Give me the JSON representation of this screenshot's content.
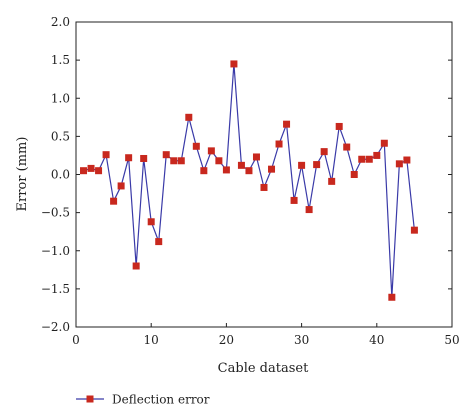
{
  "chart_data": {
    "type": "line",
    "xlabel": "Cable dataset",
    "ylabel": "Error (mm)",
    "xlim": [
      0,
      50
    ],
    "ylim": [
      -2.0,
      2.0
    ],
    "x_ticks": [
      0,
      10,
      20,
      30,
      40,
      50
    ],
    "x_tick_labels": [
      "0",
      "10",
      "20",
      "30",
      "40",
      "50"
    ],
    "y_ticks": [
      2.0,
      1.5,
      1.0,
      0.5,
      0.0,
      -0.5,
      -1.0,
      -1.5,
      -2.0
    ],
    "y_tick_labels": [
      "2.0",
      "1.5",
      "1.0",
      "0.5",
      "0.0",
      "−0.5",
      "−1.0",
      "−1.5",
      "−2.0"
    ],
    "grid": false,
    "legend_position": "bottom-left",
    "series": [
      {
        "name": "Deflection error",
        "line_color": "#3a3aa8",
        "marker_color": "#c8281e",
        "marker": "square",
        "x": [
          1,
          2,
          3,
          4,
          5,
          6,
          7,
          8,
          9,
          10,
          11,
          12,
          13,
          14,
          15,
          16,
          17,
          18,
          19,
          20,
          21,
          22,
          23,
          24,
          25,
          26,
          27,
          28,
          29,
          30,
          31,
          32,
          33,
          34,
          35,
          36,
          37,
          38,
          39,
          40,
          41,
          42,
          43,
          44,
          45
        ],
        "values": [
          0.05,
          0.08,
          0.05,
          0.26,
          -0.35,
          -0.15,
          0.22,
          -1.2,
          0.21,
          -0.62,
          -0.88,
          0.26,
          0.18,
          0.18,
          0.75,
          0.37,
          0.05,
          0.31,
          0.18,
          0.06,
          1.45,
          0.12,
          0.05,
          0.23,
          -0.17,
          0.07,
          0.4,
          0.66,
          -0.34,
          0.12,
          -0.46,
          0.13,
          0.3,
          -0.09,
          0.63,
          0.36,
          0.0,
          0.2,
          0.2,
          0.25,
          0.41,
          -1.61,
          0.14,
          0.19,
          -0.73
        ]
      }
    ]
  }
}
